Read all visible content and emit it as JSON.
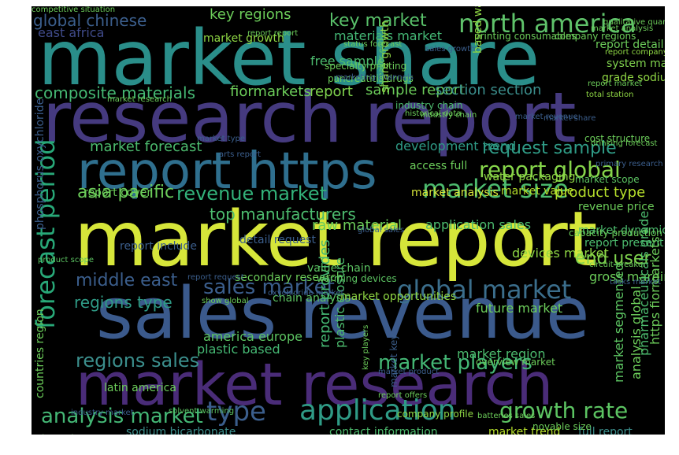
{
  "words": [
    {
      "text": "market share",
      "color": "#2a8e8a"
    },
    {
      "text": "research report",
      "color": "#453a7f"
    },
    {
      "text": "market report",
      "color": "#d6e63a"
    },
    {
      "text": "sales revenue",
      "color": "#3b5a8c"
    },
    {
      "text": "market research",
      "color": "#4a2c78"
    },
    {
      "text": "report https",
      "color": "#2f6f8e"
    },
    {
      "text": "north america",
      "color": "#5fc26a"
    },
    {
      "text": "global chinese",
      "color": "#3b5e8c"
    },
    {
      "text": "key market",
      "color": "#59c16a"
    },
    {
      "text": "key regions",
      "color": "#6ccd5a"
    },
    {
      "text": "report global",
      "color": "#86d54a"
    },
    {
      "text": "revenue market",
      "color": "#33b27a"
    },
    {
      "text": "market size",
      "color": "#4cbb6e"
    },
    {
      "text": "asia pacific",
      "color": "#6ccd5a"
    },
    {
      "text": "top manufacturers",
      "color": "#4cbb6e"
    },
    {
      "text": "sales market",
      "color": "#3b5e8c"
    },
    {
      "text": "global market",
      "color": "#3b6e8c"
    },
    {
      "text": "forecast period",
      "color": "#28a878"
    },
    {
      "text": "type",
      "color": "#3b5e8c"
    },
    {
      "text": "application",
      "color": "#2f9b86"
    },
    {
      "text": "growth rate",
      "color": "#5cc462"
    },
    {
      "text": "analysis market",
      "color": "#44b775"
    },
    {
      "text": "market forecast",
      "color": "#4cbb6e"
    },
    {
      "text": "request sample",
      "color": "#2f9b86"
    },
    {
      "text": "composite materials",
      "color": "#45b873"
    },
    {
      "text": "fiormarkets",
      "color": "#6ccd5a"
    },
    {
      "text": "report",
      "color": "#7fd34e"
    },
    {
      "text": "sample report",
      "color": "#6ccd5a"
    },
    {
      "text": "section section",
      "color": "#3b8e8c"
    },
    {
      "text": "middle east",
      "color": "#3b5e8c"
    },
    {
      "text": "regions type",
      "color": "#2f9b86"
    },
    {
      "text": "regions sales",
      "color": "#3b8e8c"
    },
    {
      "text": "market players",
      "color": "#44b775"
    },
    {
      "text": "east africa",
      "color": "#3f4a89"
    },
    {
      "text": "materials market",
      "color": "#44b775"
    },
    {
      "text": "market growth",
      "color": "#8fd744"
    },
    {
      "text": "development trend",
      "color": "#2f9b86"
    },
    {
      "text": "raw material",
      "color": "#6ccd5a"
    },
    {
      "text": "end user",
      "color": "#7fd34e"
    },
    {
      "text": "report cover",
      "color": "#6ccd5a"
    },
    {
      "text": "revenue price",
      "color": "#6ccd5a"
    },
    {
      "text": "product type",
      "color": "#b5de2b"
    },
    {
      "text": "market value",
      "color": "#b5de2b"
    },
    {
      "text": "market analysis",
      "color": "#d6e63a"
    },
    {
      "text": "report detail",
      "color": "#6ccd5a"
    },
    {
      "text": "system market",
      "color": "#7fd34e"
    },
    {
      "text": "grade sodium",
      "color": "#8fd744"
    },
    {
      "text": "free sample",
      "color": "#4cbb6e"
    },
    {
      "text": "secondary research",
      "color": "#6ccd5a"
    },
    {
      "text": "future market",
      "color": "#6ccd5a"
    },
    {
      "text": "chain analysis",
      "color": "#5cc462"
    },
    {
      "text": "market opportunities",
      "color": "#8fd744"
    },
    {
      "text": "gross margin",
      "color": "#6ccd5a"
    },
    {
      "text": "report present",
      "color": "#4cbb6e"
    },
    {
      "text": "america europe",
      "color": "#5cc462"
    },
    {
      "text": "plastic based",
      "color": "#45b873"
    },
    {
      "text": "market region",
      "color": "#4cbb6e"
    },
    {
      "text": "latin america",
      "color": "#6ccd5a"
    },
    {
      "text": "sodium bicarbonate",
      "color": "#3b8e8c"
    },
    {
      "text": "contact information",
      "color": "#4cbb6e"
    },
    {
      "text": "market trend",
      "color": "#b5de2b"
    },
    {
      "text": "full report",
      "color": "#3b8e8c"
    },
    {
      "text": "share growth",
      "color": "#8fd744"
    },
    {
      "text": "report provides",
      "color": "#45b873"
    },
    {
      "text": "plastic closure",
      "color": "#4cbb6e"
    },
    {
      "text": "market segmented",
      "color": "#5cc462"
    },
    {
      "text": "analysis global",
      "color": "#6ccd5a"
    },
    {
      "text": "pharmaceuticals grade",
      "color": "#4cbb6e"
    },
    {
      "text": "https fiormarkets",
      "color": "#6ccd5a"
    },
    {
      "text": "phosphorus oxychloride",
      "color": "#3b5e8c"
    },
    {
      "text": "countries region",
      "color": "#6ccd5a"
    },
    {
      "text": "water packaging",
      "color": "#8fd744"
    },
    {
      "text": "application sales",
      "color": "#4cbb6e"
    },
    {
      "text": "value chain",
      "color": "#5cc462"
    },
    {
      "text": "market dynamics",
      "color": "#4cbb6e"
    },
    {
      "text": "access full",
      "color": "#6ccd5a"
    },
    {
      "text": "cost structure",
      "color": "#6ccd5a"
    },
    {
      "text": "detail request",
      "color": "#3b5e8c"
    },
    {
      "text": "report include",
      "color": "#3b5e8c"
    },
    {
      "text": "printing consumables",
      "color": "#6ccd5a"
    },
    {
      "text": "company regions",
      "color": "#6ccd5a"
    },
    {
      "text": "specialty printing",
      "color": "#6ccd5a"
    },
    {
      "text": "pancreatitis drugs",
      "color": "#6ccd5a"
    },
    {
      "text": "based water",
      "color": "#8fd744"
    },
    {
      "text": "industry chain",
      "color": "#4cbb6e"
    },
    {
      "text": "status forecast",
      "color": "#6ccd5a"
    },
    {
      "text": "report report",
      "color": "#6ccd5a"
    },
    {
      "text": "warming devices",
      "color": "#5cc462"
    },
    {
      "text": "devices market",
      "color": "#8fd744"
    },
    {
      "text": "market key",
      "color": "#3b5e8c"
    },
    {
      "text": "capacity production",
      "color": "#6ccd5a"
    },
    {
      "text": "report company",
      "color": "#8fd744"
    },
    {
      "text": "tasks market",
      "color": "#3b5e8c"
    },
    {
      "text": "industry market",
      "color": "#3b5e8c"
    },
    {
      "text": "market type",
      "color": "#3b5e8c"
    },
    {
      "text": "speaker end",
      "color": "#5cc462"
    },
    {
      "text": "marketing channels",
      "color": "#3b5e8c"
    },
    {
      "text": "solvent warming",
      "color": "#5cc462"
    },
    {
      "text": "company profile",
      "color": "#8fd744"
    },
    {
      "text": "batteries sales",
      "color": "#6ccd5a"
    },
    {
      "text": "novable size",
      "color": "#6ccd5a"
    },
    {
      "text": "show global",
      "color": "#6ccd5a"
    },
    {
      "text": "key players",
      "color": "#6ccd5a"
    },
    {
      "text": "market scope",
      "color": "#5cc462"
    },
    {
      "text": "oxychloride market",
      "color": "#3b5e8c"
    },
    {
      "text": "report offers",
      "color": "#6ccd5a"
    },
    {
      "text": "overview market",
      "color": "#6ccd5a"
    },
    {
      "text": "product scope",
      "color": "#5cc462"
    },
    {
      "text": "market research",
      "color": "#6ccd5a"
    },
    {
      "text": "industry chain",
      "color": "#6ccd5a"
    },
    {
      "text": "drinking forecast",
      "color": "#6ccd5a"
    },
    {
      "text": "circuit breaker",
      "color": "#6ccd5a"
    },
    {
      "text": "historical data",
      "color": "#6ccd5a"
    },
    {
      "text": "market share",
      "color": "#3b5e8c"
    },
    {
      "text": "market revenue",
      "color": "#3b5e8c"
    },
    {
      "text": "sales market",
      "color": "#6ccd5a"
    },
    {
      "text": "arts report",
      "color": "#3b5e8c"
    },
    {
      "text": "report request",
      "color": "#3b5e8c"
    },
    {
      "text": "market product",
      "color": "#3b5e8c"
    },
    {
      "text": "global sales",
      "color": "#3b5e8c"
    },
    {
      "text": "sales growth",
      "color": "#3b5e8c"
    },
    {
      "text": "total station",
      "color": "#8fd744"
    },
    {
      "text": "primary research",
      "color": "#3b5e8c"
    },
    {
      "text": "qualitative quantitative",
      "color": "#6ccd5a"
    },
    {
      "text": "report market",
      "color": "#6ccd5a"
    },
    {
      "text": "market analysis",
      "color": "#6ccd5a"
    },
    {
      "text": "competitive situation",
      "color": "#6ccd5a"
    }
  ]
}
